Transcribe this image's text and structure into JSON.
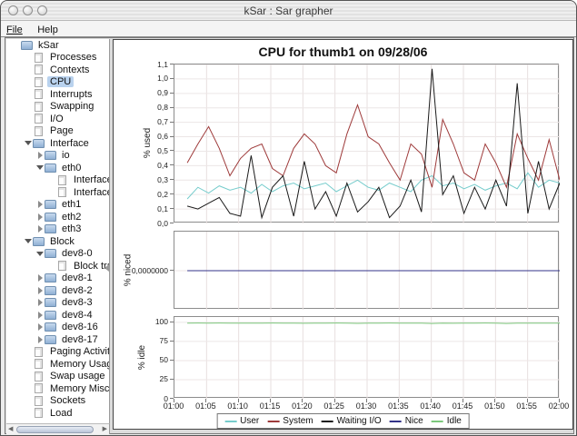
{
  "window": {
    "title": "kSar : Sar grapher"
  },
  "menu": {
    "items": [
      "File",
      "Help"
    ]
  },
  "sidebar": {
    "items": [
      {
        "label": "kSar",
        "depth": 0,
        "icon": "folder",
        "arrow": "none",
        "selected": false
      },
      {
        "label": "Processes",
        "depth": 1,
        "icon": "doc",
        "arrow": "none",
        "selected": false
      },
      {
        "label": "Contexts",
        "depth": 1,
        "icon": "doc",
        "arrow": "none",
        "selected": false
      },
      {
        "label": "CPU",
        "depth": 1,
        "icon": "doc",
        "arrow": "none",
        "selected": true
      },
      {
        "label": "Interrupts",
        "depth": 1,
        "icon": "doc",
        "arrow": "none",
        "selected": false
      },
      {
        "label": "Swapping",
        "depth": 1,
        "icon": "doc",
        "arrow": "none",
        "selected": false
      },
      {
        "label": "I/O",
        "depth": 1,
        "icon": "doc",
        "arrow": "none",
        "selected": false
      },
      {
        "label": "Page",
        "depth": 1,
        "icon": "doc",
        "arrow": "none",
        "selected": false
      },
      {
        "label": "Interface",
        "depth": 1,
        "icon": "folder",
        "arrow": "down",
        "selected": false
      },
      {
        "label": "io",
        "depth": 2,
        "icon": "folder",
        "arrow": "right",
        "selected": false
      },
      {
        "label": "eth0",
        "depth": 2,
        "icon": "folder",
        "arrow": "down",
        "selected": false
      },
      {
        "label": "Interface tr",
        "depth": 3,
        "icon": "doc",
        "arrow": "none",
        "selected": false
      },
      {
        "label": "Interface er",
        "depth": 3,
        "icon": "doc",
        "arrow": "none",
        "selected": false
      },
      {
        "label": "eth1",
        "depth": 2,
        "icon": "folder",
        "arrow": "right",
        "selected": false
      },
      {
        "label": "eth2",
        "depth": 2,
        "icon": "folder",
        "arrow": "right",
        "selected": false
      },
      {
        "label": "eth3",
        "depth": 2,
        "icon": "folder",
        "arrow": "right",
        "selected": false
      },
      {
        "label": "Block",
        "depth": 1,
        "icon": "folder",
        "arrow": "down",
        "selected": false
      },
      {
        "label": "dev8-0",
        "depth": 2,
        "icon": "folder",
        "arrow": "down",
        "selected": false
      },
      {
        "label": "Block trans",
        "depth": 3,
        "icon": "doc",
        "arrow": "none",
        "selected": false
      },
      {
        "label": "dev8-1",
        "depth": 2,
        "icon": "folder",
        "arrow": "right",
        "selected": false
      },
      {
        "label": "dev8-2",
        "depth": 2,
        "icon": "folder",
        "arrow": "right",
        "selected": false
      },
      {
        "label": "dev8-3",
        "depth": 2,
        "icon": "folder",
        "arrow": "right",
        "selected": false
      },
      {
        "label": "dev8-4",
        "depth": 2,
        "icon": "folder",
        "arrow": "right",
        "selected": false
      },
      {
        "label": "dev8-16",
        "depth": 2,
        "icon": "folder",
        "arrow": "right",
        "selected": false
      },
      {
        "label": "dev8-17",
        "depth": 2,
        "icon": "folder",
        "arrow": "right",
        "selected": false
      },
      {
        "label": "Paging Activity",
        "depth": 1,
        "icon": "doc",
        "arrow": "none",
        "selected": false
      },
      {
        "label": "Memory Usage",
        "depth": 1,
        "icon": "doc",
        "arrow": "none",
        "selected": false
      },
      {
        "label": "Swap usage",
        "depth": 1,
        "icon": "doc",
        "arrow": "none",
        "selected": false
      },
      {
        "label": "Memory Misc",
        "depth": 1,
        "icon": "doc",
        "arrow": "none",
        "selected": false
      },
      {
        "label": "Sockets",
        "depth": 1,
        "icon": "doc",
        "arrow": "none",
        "selected": false
      },
      {
        "label": "Load",
        "depth": 1,
        "icon": "doc",
        "arrow": "none",
        "selected": false
      }
    ]
  },
  "chart_data": {
    "type": "line",
    "title": "CPU for thumb1 on 09/28/06",
    "x_tick_labels": [
      "01:00",
      "01:05",
      "01:10",
      "01:15",
      "01:20",
      "01:25",
      "01:30",
      "01:35",
      "01:40",
      "01:45",
      "01:50",
      "01:55",
      "02:00"
    ],
    "x_range_minutes": [
      0,
      60
    ],
    "data_start_minute": 2,
    "grid": true,
    "legend_position": "bottom",
    "legend": [
      {
        "label": "User",
        "color": "#76cccc"
      },
      {
        "label": "System",
        "color": "#9e3a3a"
      },
      {
        "label": "Waiting I/O",
        "color": "#1a1a1a"
      },
      {
        "label": "Nice",
        "color": "#333388"
      },
      {
        "label": "Idle",
        "color": "#7cc87c"
      }
    ],
    "subplots": [
      {
        "ylabel": "% used",
        "ylim": [
          0,
          1.1
        ],
        "ytick_values": [
          0,
          0.1,
          0.2,
          0.3,
          0.4,
          0.5,
          0.6,
          0.7,
          0.8,
          0.9,
          1.0,
          1.1
        ],
        "ytick_labels": [
          "0,0",
          "0,1",
          "0,2",
          "0,3",
          "0,4",
          "0,5",
          "0,6",
          "0,7",
          "0,8",
          "0,9",
          "1,0",
          "1,1"
        ],
        "series": [
          {
            "name": "User",
            "color": "#76cccc",
            "values": [
              0.17,
              0.25,
              0.21,
              0.26,
              0.23,
              0.25,
              0.21,
              0.27,
              0.22,
              0.26,
              0.28,
              0.24,
              0.26,
              0.28,
              0.22,
              0.26,
              0.3,
              0.25,
              0.23,
              0.28,
              0.25,
              0.22,
              0.3,
              0.33,
              0.26,
              0.28,
              0.24,
              0.27,
              0.23,
              0.26,
              0.28,
              0.24,
              0.35,
              0.25,
              0.3,
              0.28
            ]
          },
          {
            "name": "System",
            "color": "#9e3a3a",
            "values": [
              0.42,
              0.55,
              0.67,
              0.52,
              0.33,
              0.45,
              0.52,
              0.55,
              0.38,
              0.33,
              0.52,
              0.62,
              0.55,
              0.4,
              0.35,
              0.62,
              0.82,
              0.6,
              0.55,
              0.42,
              0.3,
              0.55,
              0.48,
              0.25,
              0.72,
              0.55,
              0.35,
              0.3,
              0.55,
              0.42,
              0.25,
              0.62,
              0.45,
              0.3,
              0.58,
              0.3
            ]
          },
          {
            "name": "Waiting I/O",
            "color": "#1a1a1a",
            "values": [
              0.12,
              0.1,
              0.14,
              0.18,
              0.07,
              0.05,
              0.47,
              0.04,
              0.25,
              0.33,
              0.05,
              0.43,
              0.1,
              0.22,
              0.05,
              0.28,
              0.08,
              0.15,
              0.25,
              0.04,
              0.12,
              0.3,
              0.08,
              1.07,
              0.2,
              0.33,
              0.07,
              0.25,
              0.1,
              0.3,
              0.12,
              0.97,
              0.07,
              0.43,
              0.1,
              0.28
            ]
          }
        ]
      },
      {
        "ylabel": "% niced",
        "ylim": [
          -1,
          1
        ],
        "ytick_values": [
          0
        ],
        "ytick_labels": [
          "0,0000000"
        ],
        "series": [
          {
            "name": "Nice",
            "color": "#333388",
            "values": [
              0,
              0,
              0,
              0,
              0,
              0,
              0,
              0,
              0,
              0,
              0,
              0,
              0,
              0,
              0,
              0,
              0,
              0,
              0,
              0,
              0,
              0,
              0,
              0,
              0,
              0,
              0,
              0,
              0,
              0,
              0,
              0,
              0,
              0,
              0,
              0
            ]
          }
        ]
      },
      {
        "ylabel": "% idle",
        "ylim": [
          0,
          107
        ],
        "ytick_values": [
          0,
          25,
          50,
          75,
          100
        ],
        "ytick_labels": [
          "0",
          "25",
          "50",
          "75",
          "100"
        ],
        "series": [
          {
            "name": "Idle",
            "color": "#7cc87c",
            "values": [
              99,
              99.2,
              99,
              99.1,
              99,
              98.9,
              99,
              99,
              99.1,
              99,
              99,
              98.8,
              99,
              99,
              99.1,
              99,
              98.7,
              99,
              99,
              99.2,
              99,
              99,
              98.9,
              98.5,
              99,
              98.8,
              99,
              99,
              99.1,
              99,
              98.6,
              99,
              99,
              98.9,
              99,
              99
            ]
          }
        ]
      }
    ]
  }
}
